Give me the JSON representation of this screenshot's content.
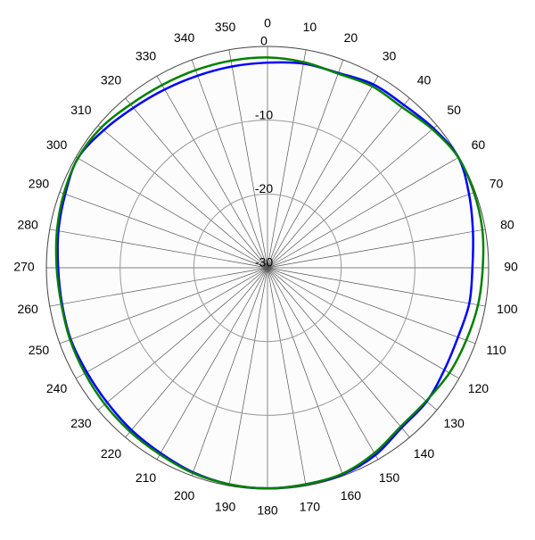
{
  "chart_data": {
    "type": "polar",
    "theta": [
      0,
      10,
      20,
      30,
      40,
      50,
      60,
      70,
      80,
      90,
      100,
      110,
      120,
      130,
      140,
      150,
      160,
      170,
      180,
      190,
      200,
      210,
      220,
      230,
      240,
      250,
      260,
      270,
      280,
      290,
      300,
      310,
      320,
      330,
      340,
      350
    ],
    "thetaticks": [
      0,
      10,
      20,
      30,
      40,
      50,
      60,
      70,
      80,
      90,
      100,
      110,
      120,
      130,
      140,
      150,
      160,
      170,
      180,
      190,
      200,
      210,
      220,
      230,
      240,
      250,
      260,
      270,
      280,
      290,
      300,
      310,
      320,
      330,
      340,
      350
    ],
    "rlim": [
      -30,
      0
    ],
    "rticks": [
      -30,
      -20,
      -10,
      0
    ],
    "grid": true,
    "series": [
      {
        "color": "#0000ff",
        "values": [
          -2.2,
          -1.9,
          -1.9,
          -1.3,
          -1.2,
          -0.6,
          -0.1,
          -0.9,
          -1.7,
          -2.2,
          -2.2,
          -2.5,
          -2.3,
          -1.8,
          -1.7,
          -0.7,
          -0.2,
          -0.2,
          -0.1,
          -0.2,
          -0.5,
          -1.0,
          -1.3,
          -1.6,
          -1.7,
          -1.6,
          -1.7,
          -1.6,
          -1.2,
          -0.8,
          -0.3,
          -1.0,
          -1.7,
          -2.1,
          -2.3,
          -2.3
        ]
      },
      {
        "color": "#008000",
        "values": [
          -1.5,
          -1.7,
          -2.0,
          -1.6,
          -1.6,
          -0.8,
          -0.1,
          -0.2,
          -0.4,
          -0.8,
          -1.0,
          -1.3,
          -1.5,
          -1.9,
          -1.9,
          -1.0,
          -0.3,
          -0.2,
          -0.1,
          -0.2,
          -0.4,
          -0.8,
          -1.0,
          -1.2,
          -1.4,
          -1.5,
          -1.6,
          -1.4,
          -1.0,
          -0.6,
          -0.3,
          -0.5,
          -1.1,
          -1.4,
          -1.5,
          -1.5
        ]
      }
    ]
  }
}
